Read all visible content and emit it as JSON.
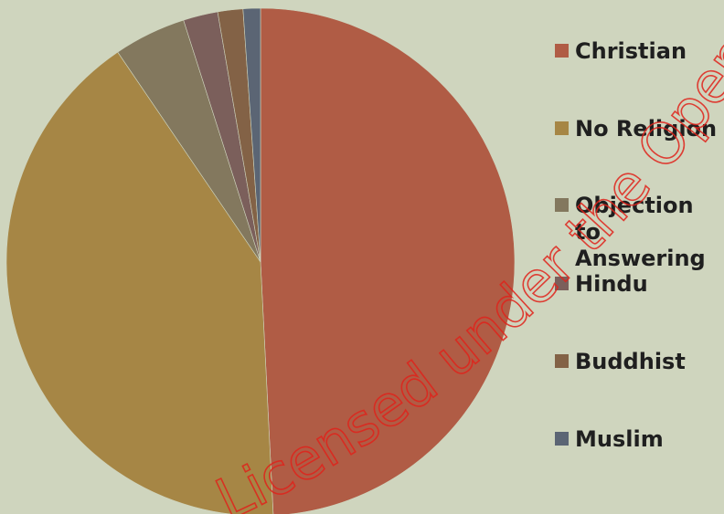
{
  "chart_data": {
    "type": "pie",
    "title": "",
    "start_angle_deg": 0,
    "direction": "clockwise",
    "legend_position": "right",
    "series": [
      {
        "name": "",
        "slices": [
          {
            "label": "Christian",
            "value": 49.2,
            "color": "#b05c45"
          },
          {
            "label": "No Religion",
            "value": 41.3,
            "color": "#a68645"
          },
          {
            "label": "Objection to Answering",
            "value": 4.6,
            "color": "#83785e"
          },
          {
            "label": "Hindu",
            "value": 2.2,
            "color": "#7b5f5b"
          },
          {
            "label": "Buddhist",
            "value": 1.6,
            "color": "#836246"
          },
          {
            "label": "Muslim",
            "value": 1.1,
            "color": "#5b6574"
          }
        ]
      }
    ]
  },
  "watermark": {
    "text": "Licensed under the Open",
    "color": "#e0231b"
  }
}
